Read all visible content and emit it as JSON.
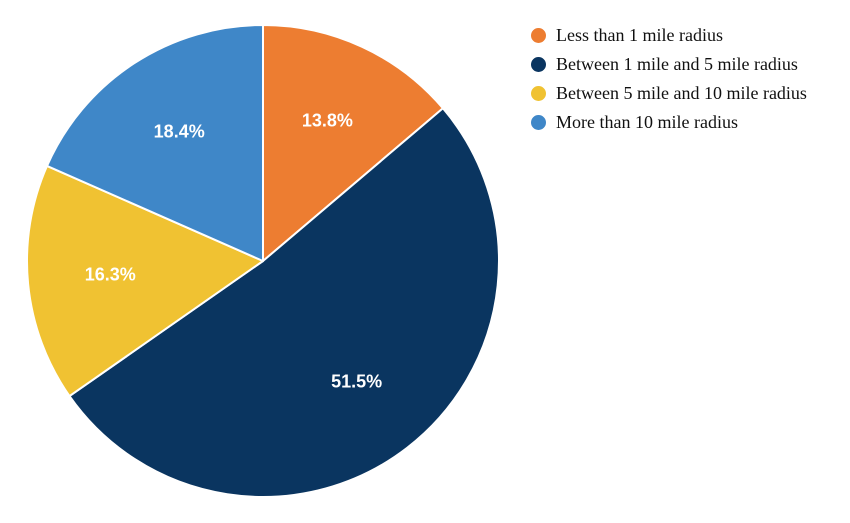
{
  "chart_data": {
    "type": "pie",
    "categories": [
      "Less than 1 mile radius",
      "Between 1 mile and 5 mile radius",
      "Between 5 mile and 10 mile radius",
      "More than 10 mile radius"
    ],
    "values": [
      13.8,
      51.5,
      16.3,
      18.4
    ],
    "labels": [
      "13.8%",
      "51.5%",
      "16.3%",
      "18.4%"
    ],
    "colors": [
      "#ED7D31",
      "#0A3560",
      "#F0C232",
      "#3F87C8"
    ],
    "start_angle": "12 o'clock",
    "direction": "clockwise",
    "legend_position": "right"
  }
}
